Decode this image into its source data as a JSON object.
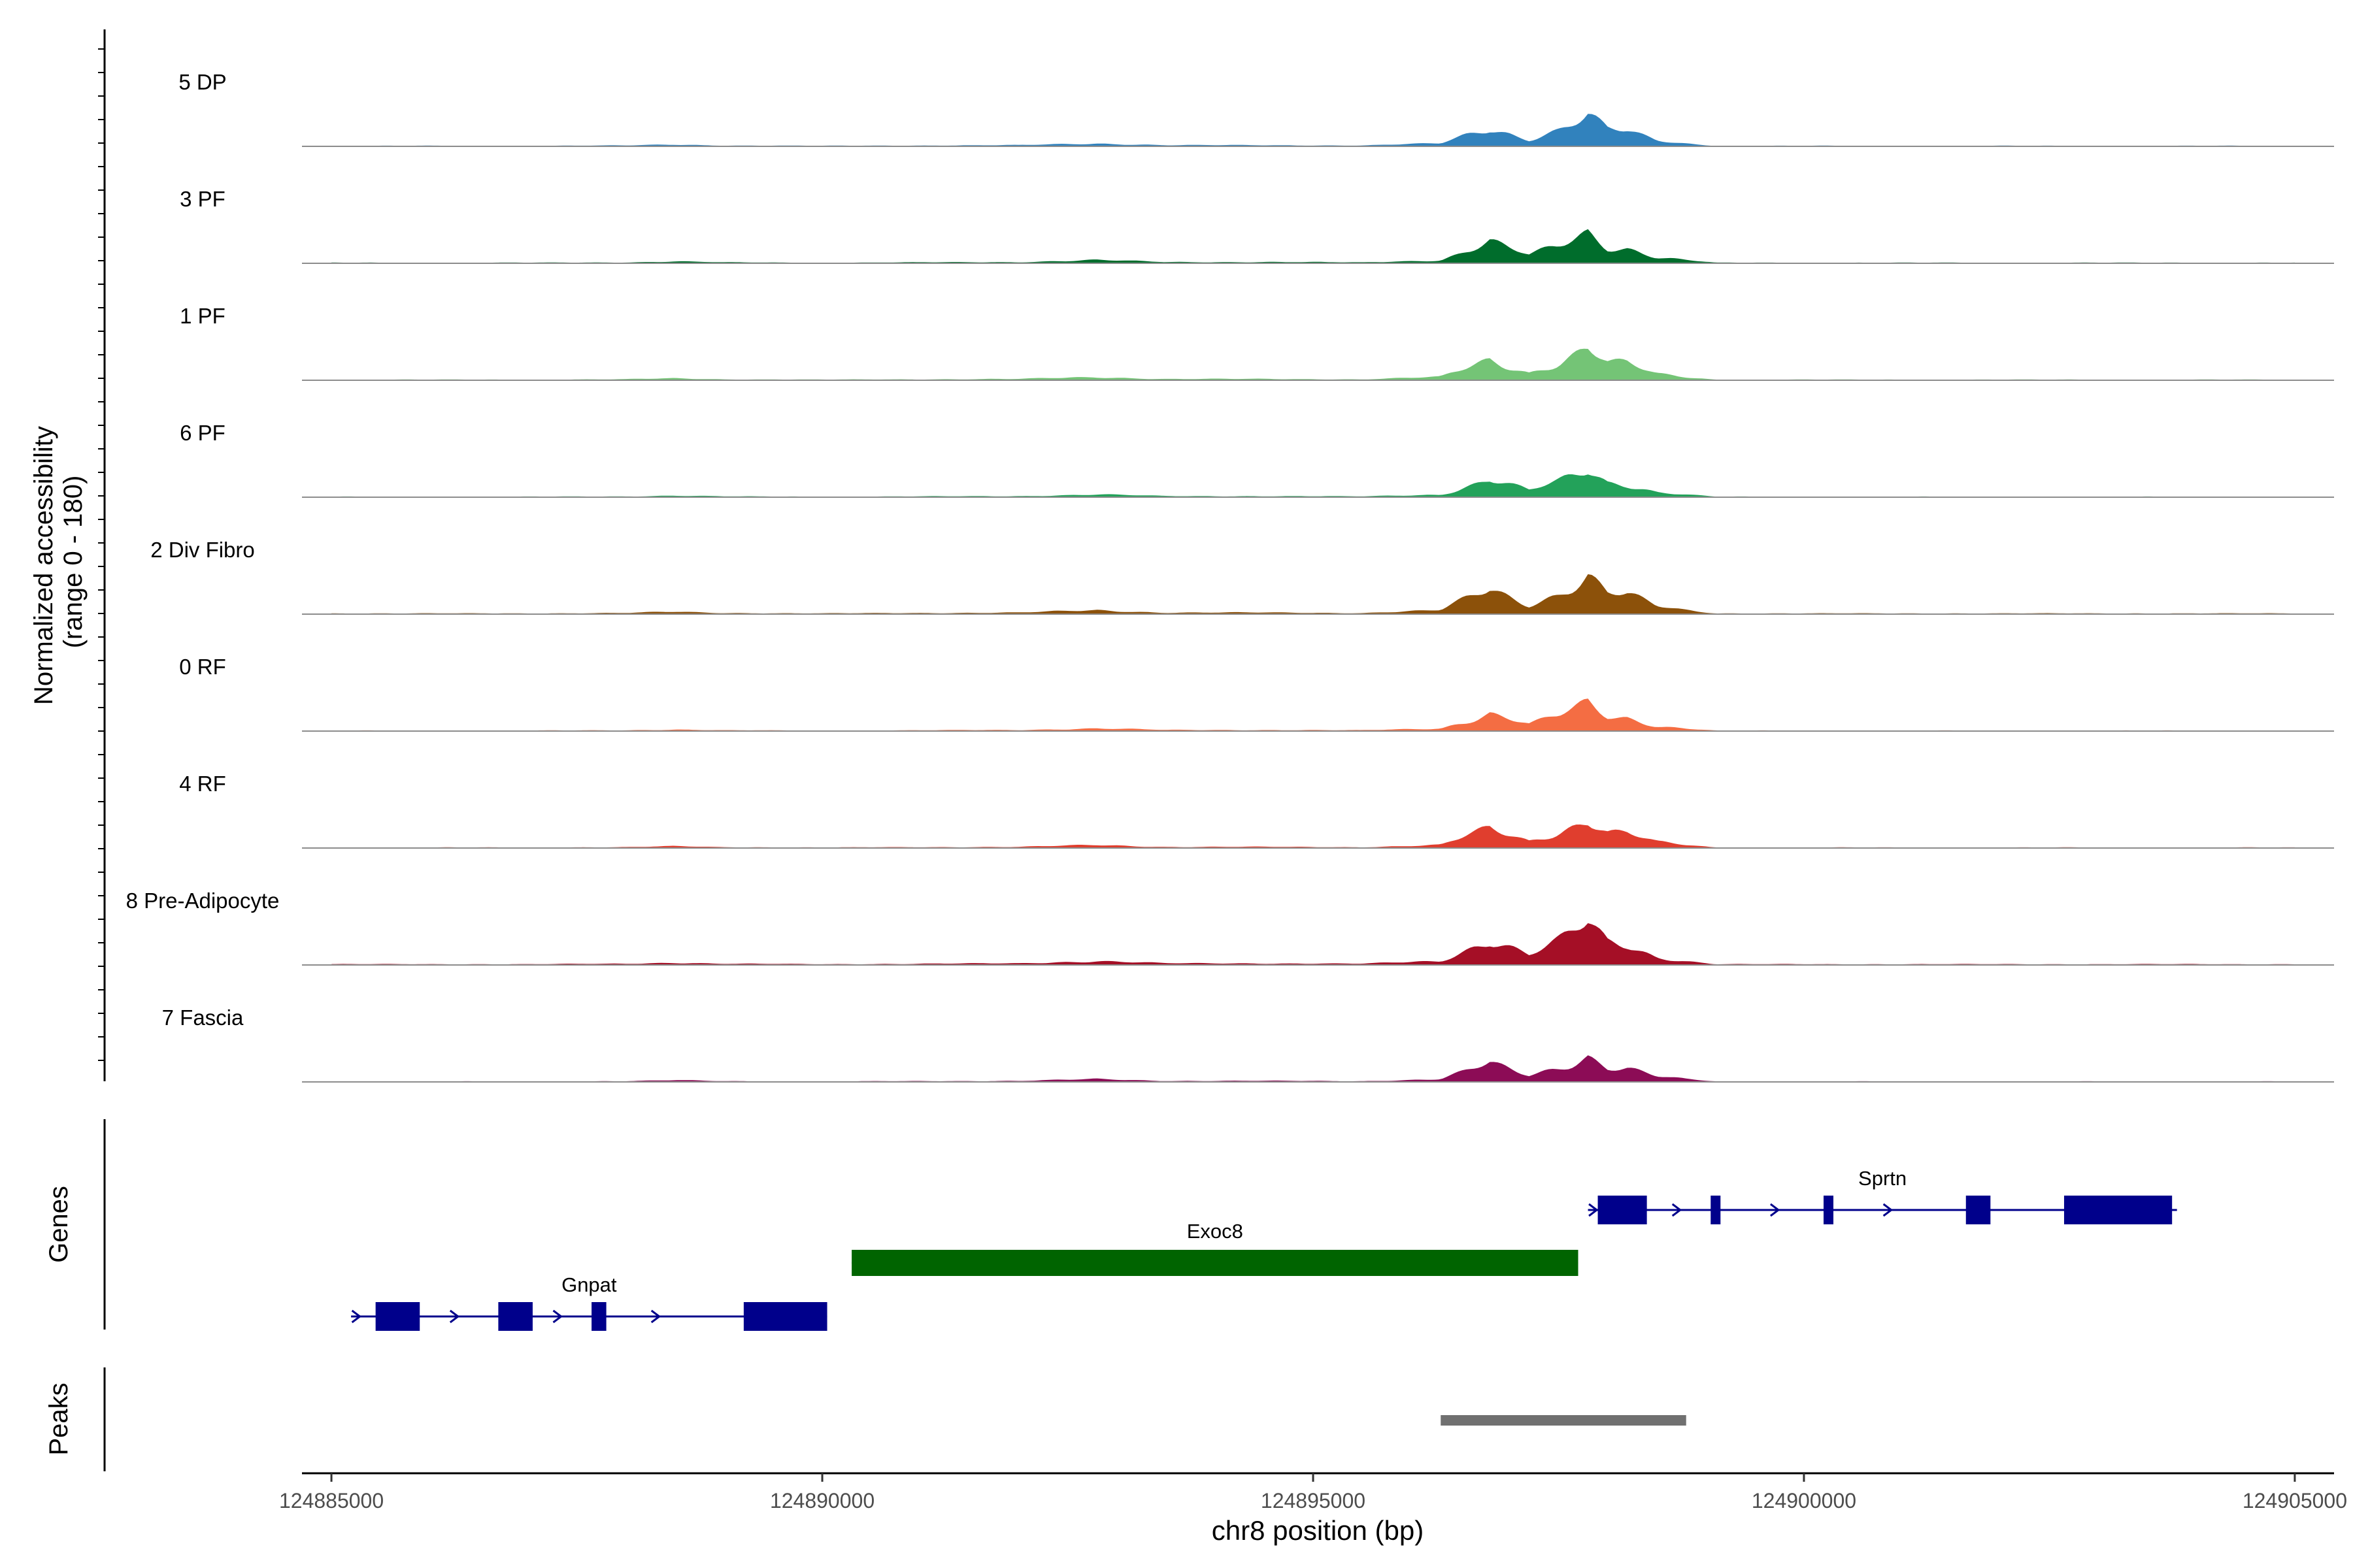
{
  "chart_data": {
    "type": "area",
    "title": "",
    "xlabel": "chr8 position (bp)",
    "ylabel_line1": "Normalized accessibility",
    "ylabel_line2": "(range 0 - 180)",
    "ylim": [
      0,
      180
    ],
    "xlim": [
      124884700,
      124905400
    ],
    "x_ticks": [
      124885000,
      124890000,
      124895000,
      124900000,
      124905000
    ],
    "x_tick_labels": [
      "124885000",
      "124890000",
      "124895000",
      "124900000",
      "124905000"
    ],
    "peak_profile": {
      "x": [
        124885000,
        124886000,
        124887000,
        124888000,
        124888500,
        124889000,
        124890000,
        124891000,
        124892000,
        124892800,
        124893500,
        124894500,
        124895500,
        124896300,
        124896800,
        124897200,
        124897500,
        124897800,
        124898000,
        124898200,
        124898500,
        124898800,
        124899100,
        124900000,
        124901000,
        124902000,
        124903000,
        124904000,
        124905000
      ],
      "relative": [
        0.02,
        0.02,
        0.02,
        0.03,
        0.06,
        0.03,
        0.02,
        0.03,
        0.04,
        0.1,
        0.04,
        0.04,
        0.03,
        0.1,
        0.65,
        0.25,
        0.55,
        1.0,
        0.55,
        0.5,
        0.2,
        0.1,
        0.02,
        0.02,
        0.02,
        0.02,
        0.02,
        0.02,
        0.02
      ]
    },
    "series": [
      {
        "name": "5 DP",
        "color": "#3182BD",
        "max": 65
      },
      {
        "name": "3 PF",
        "color": "#006D2C",
        "max": 70
      },
      {
        "name": "1 PF",
        "color": "#74C476",
        "max": 70
      },
      {
        "name": "6 PF",
        "color": "#23A25A",
        "max": 60
      },
      {
        "name": "2 Div Fibro",
        "color": "#8C510A",
        "max": 85
      },
      {
        "name": "0 RF",
        "color": "#F46D43",
        "max": 60
      },
      {
        "name": "4 RF",
        "color": "#E03E2E",
        "max": 65
      },
      {
        "name": "8 Pre-Adipocyte",
        "color": "#A50F26",
        "max": 90
      },
      {
        "name": "7 Fascia",
        "color": "#8C0C56",
        "max": 60
      }
    ],
    "genes_panel_label": "Genes",
    "peaks_panel_label": "Peaks",
    "genes": [
      {
        "name": "Gnpat",
        "color": "#00008B",
        "start": 124885200,
        "end": 124890050,
        "row": 2,
        "exons": [
          [
            124885450,
            124885900
          ],
          [
            124886700,
            124887050
          ],
          [
            124887650,
            124887800
          ],
          [
            124889200,
            124890050
          ]
        ],
        "arrows": [
          124885250,
          124886250,
          124887300,
          124888300
        ]
      },
      {
        "name": "Exoc8",
        "color": "#006400",
        "start": 124890300,
        "end": 124897700,
        "row": 1,
        "exons": [
          [
            124890300,
            124897700
          ]
        ],
        "arrows": []
      },
      {
        "name": "Sprtn",
        "color": "#00008B",
        "start": 124897800,
        "end": 124903800,
        "row": 0,
        "exons": [
          [
            124897900,
            124898400
          ],
          [
            124899050,
            124899150
          ],
          [
            124900200,
            124900300
          ],
          [
            124901650,
            124901900
          ],
          [
            124902650,
            124903750
          ]
        ],
        "arrows": [
          124897850,
          124898700,
          124899700,
          124900850
        ]
      }
    ],
    "peaks": [
      {
        "start": 124896300,
        "end": 124898800,
        "color": "#707070"
      }
    ]
  }
}
